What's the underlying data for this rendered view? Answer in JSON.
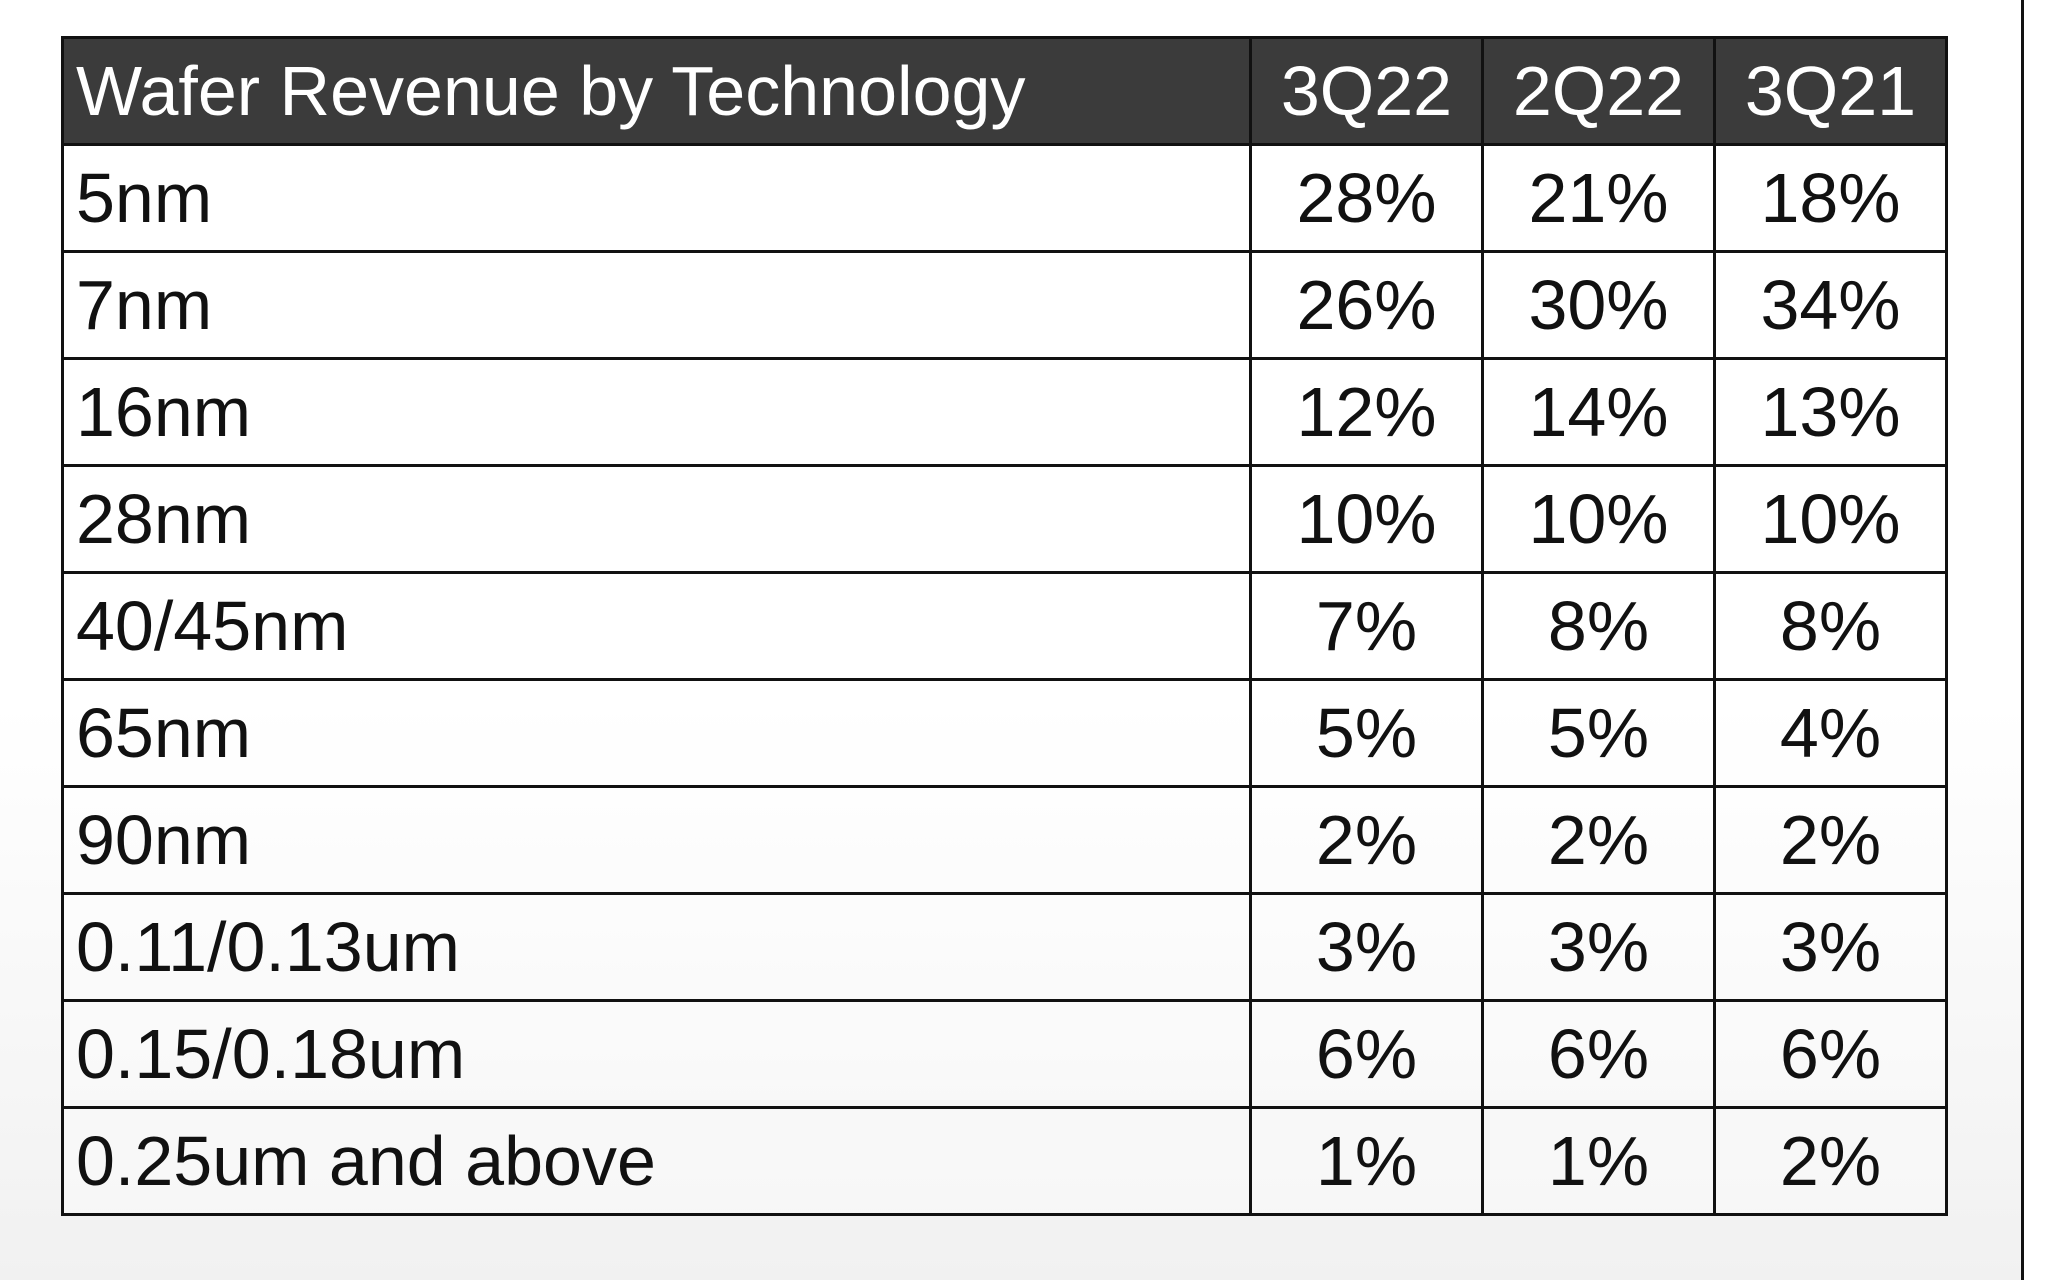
{
  "table": {
    "header": {
      "title": "Wafer Revenue by Technology",
      "quarters": [
        "3Q22",
        "2Q22",
        "3Q21"
      ]
    },
    "rows": [
      {
        "technology": "5nm",
        "values": [
          "28%",
          "21%",
          "18%"
        ]
      },
      {
        "technology": "7nm",
        "values": [
          "26%",
          "30%",
          "34%"
        ]
      },
      {
        "technology": "16nm",
        "values": [
          "12%",
          "14%",
          "13%"
        ]
      },
      {
        "technology": "28nm",
        "values": [
          "10%",
          "10%",
          "10%"
        ]
      },
      {
        "technology": "40/45nm",
        "values": [
          "7%",
          "8%",
          "8%"
        ]
      },
      {
        "technology": "65nm",
        "values": [
          "5%",
          "5%",
          "4%"
        ]
      },
      {
        "technology": "90nm",
        "values": [
          "2%",
          "2%",
          "2%"
        ]
      },
      {
        "technology": "0.11/0.13um",
        "values": [
          "3%",
          "3%",
          "3%"
        ]
      },
      {
        "technology": "0.15/0.18um",
        "values": [
          "6%",
          "6%",
          "6%"
        ]
      },
      {
        "technology": "0.25um and above",
        "values": [
          "1%",
          "1%",
          "2%"
        ]
      }
    ]
  },
  "colors": {
    "header_bg": "#3b3b3b",
    "header_text": "#ffffff",
    "border": "#111111",
    "text": "#111111"
  }
}
